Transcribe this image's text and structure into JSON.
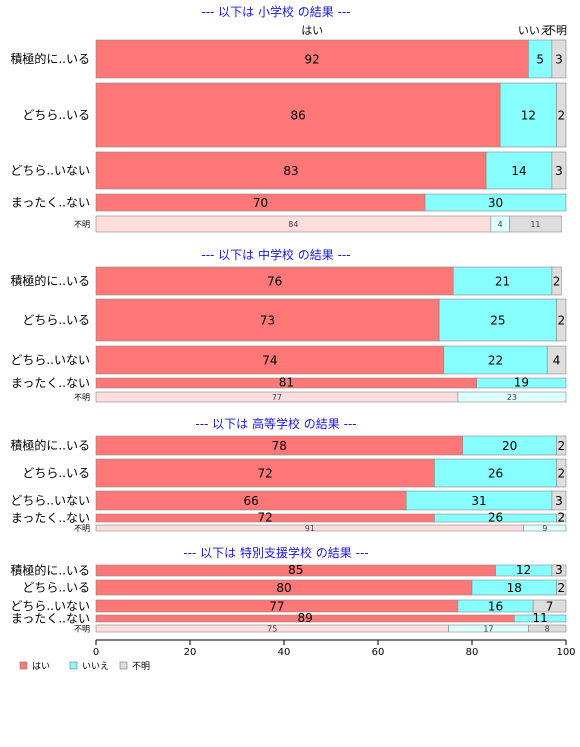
{
  "chart_data": {
    "type": "bar",
    "orientation": "horizontal",
    "stacked": "percent",
    "xlim": [
      0,
      100
    ],
    "xticks": [
      0,
      20,
      40,
      60,
      80,
      100
    ],
    "series_names": [
      "はい",
      "いいえ",
      "不明"
    ],
    "colors": {
      "yes": "#ff7777",
      "no": "#88ffff",
      "unk": "#dddddd"
    },
    "top_labels": [
      "はい",
      "いいえ",
      "不明"
    ],
    "legend": [
      {
        "label": "はい",
        "color": "#ff7777"
      },
      {
        "label": "いいえ",
        "color": "#88ffff"
      },
      {
        "label": "不明",
        "color": "#dddddd"
      }
    ],
    "panels": [
      {
        "title": "--- 以下は 小学校 の結果 ---",
        "rows": [
          {
            "label": "積極的に..いる",
            "values": [
              92,
              5,
              3
            ]
          },
          {
            "label": "どちら..いる",
            "values": [
              86,
              12,
              2
            ]
          },
          {
            "label": "どちら..いない",
            "values": [
              83,
              14,
              3
            ]
          },
          {
            "label": "まったく..ない",
            "values": [
              70,
              30,
              0
            ]
          },
          {
            "label": "不明",
            "values": [
              84,
              4,
              11
            ]
          }
        ]
      },
      {
        "title": "--- 以下は 中学校 の結果 ---",
        "rows": [
          {
            "label": "積極的に..いる",
            "values": [
              76,
              21,
              2
            ]
          },
          {
            "label": "どちら..いる",
            "values": [
              73,
              25,
              2
            ]
          },
          {
            "label": "どちら..いない",
            "values": [
              74,
              22,
              4
            ]
          },
          {
            "label": "まったく..ない",
            "values": [
              81,
              19,
              0
            ]
          },
          {
            "label": "不明",
            "values": [
              77,
              23,
              0
            ]
          }
        ]
      },
      {
        "title": "--- 以下は 高等学校 の結果 ---",
        "rows": [
          {
            "label": "積極的に..いる",
            "values": [
              78,
              20,
              2
            ]
          },
          {
            "label": "どちら..いる",
            "values": [
              72,
              26,
              2
            ]
          },
          {
            "label": "どちら..いない",
            "values": [
              66,
              31,
              3
            ]
          },
          {
            "label": "まったく..ない",
            "values": [
              72,
              26,
              2
            ]
          },
          {
            "label": "不明",
            "values": [
              91,
              9,
              0
            ]
          }
        ]
      },
      {
        "title": "--- 以下は 特別支援学校 の結果 ---",
        "rows": [
          {
            "label": "積極的に..いる",
            "values": [
              85,
              12,
              3
            ]
          },
          {
            "label": "どちら..いる",
            "values": [
              80,
              18,
              2
            ]
          },
          {
            "label": "どちら..いない",
            "values": [
              77,
              16,
              7
            ]
          },
          {
            "label": "まったく..ない",
            "values": [
              89,
              11,
              0
            ]
          },
          {
            "label": "不明",
            "values": [
              75,
              17,
              8
            ]
          }
        ]
      }
    ]
  }
}
